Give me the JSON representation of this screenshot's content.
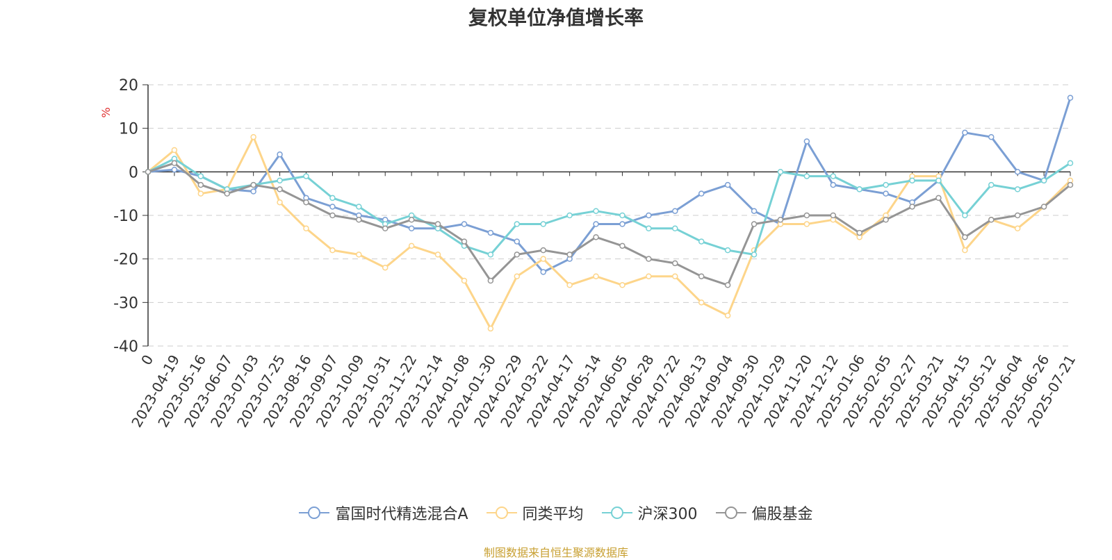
{
  "chart_data": {
    "type": "line",
    "title": "复权单位净值增长率",
    "ylabel": "%",
    "ylim": [
      -40,
      20
    ],
    "yticks": [
      -40,
      -30,
      -20,
      -10,
      0,
      10,
      20
    ],
    "grid": true,
    "legend_position": "bottom",
    "x_labels": [
      "0",
      "2023-04-19",
      "2023-05-16",
      "2023-06-07",
      "2023-07-03",
      "2023-07-25",
      "2023-08-16",
      "2023-09-07",
      "2023-10-09",
      "2023-10-31",
      "2023-11-22",
      "2023-12-14",
      "2024-01-08",
      "2024-01-30",
      "2024-02-29",
      "2024-03-22",
      "2024-04-17",
      "2024-05-14",
      "2024-06-05",
      "2024-06-28",
      "2024-07-22",
      "2024-08-13",
      "2024-09-04",
      "2024-09-30",
      "2024-10-29",
      "2024-11-20",
      "2024-12-12",
      "2025-01-06",
      "2025-02-05",
      "2025-02-27",
      "2025-03-21",
      "2025-04-15",
      "2025-05-12",
      "2025-06-04",
      "2025-06-26",
      "2025-07-21"
    ],
    "series": [
      {
        "name": "富国时代精选混合A",
        "color": "#7b9fd4",
        "values": [
          0,
          0.5,
          -1,
          -4,
          -4.5,
          4,
          -6,
          -8,
          -10,
          -11,
          -13,
          -13,
          -12,
          -14,
          -16,
          -23,
          -20,
          -12,
          -12,
          -10,
          -9,
          -5,
          -3,
          -9,
          -12,
          7,
          -3,
          -4,
          -5,
          -7,
          -2,
          9,
          8,
          0,
          -2,
          17
        ]
      },
      {
        "name": "同类平均",
        "color": "#fdd58a",
        "values": [
          0,
          5,
          -5,
          -4,
          8,
          -7,
          -13,
          -18,
          -19,
          -22,
          -17,
          -19,
          -25,
          -36,
          -24,
          -20,
          -26,
          -24,
          -26,
          -24,
          -24,
          -30,
          -33,
          -18,
          -12,
          -12,
          -11,
          -15,
          -10,
          -1,
          -1,
          -18,
          -11,
          -13,
          -8,
          -2
        ]
      },
      {
        "name": "沪深300",
        "color": "#76d1d5",
        "values": [
          0,
          3,
          -1,
          -4,
          -3,
          -2,
          -1,
          -6,
          -8,
          -12,
          -10,
          -13,
          -17,
          -19,
          -12,
          -12,
          -10,
          -9,
          -10,
          -13,
          -13,
          -16,
          -18,
          -19,
          0,
          -1,
          -1,
          -4,
          -3,
          -2,
          -2,
          -10,
          -3,
          -4,
          -2,
          2
        ]
      },
      {
        "name": "偏股基金",
        "color": "#959595",
        "values": [
          0,
          2,
          -3,
          -5,
          -3,
          -4,
          -7,
          -10,
          -11,
          -13,
          -11,
          -12,
          -16,
          -25,
          -19,
          -18,
          -19,
          -15,
          -17,
          -20,
          -21,
          -24,
          -26,
          -12,
          -11,
          -10,
          -10,
          -14,
          -11,
          -8,
          -6,
          -15,
          -11,
          -10,
          -8,
          -3
        ]
      }
    ]
  },
  "legend": [
    "富国时代精选混合A",
    "同类平均",
    "沪深300",
    "偏股基金"
  ],
  "source": "制图数据来自恒生聚源数据库"
}
